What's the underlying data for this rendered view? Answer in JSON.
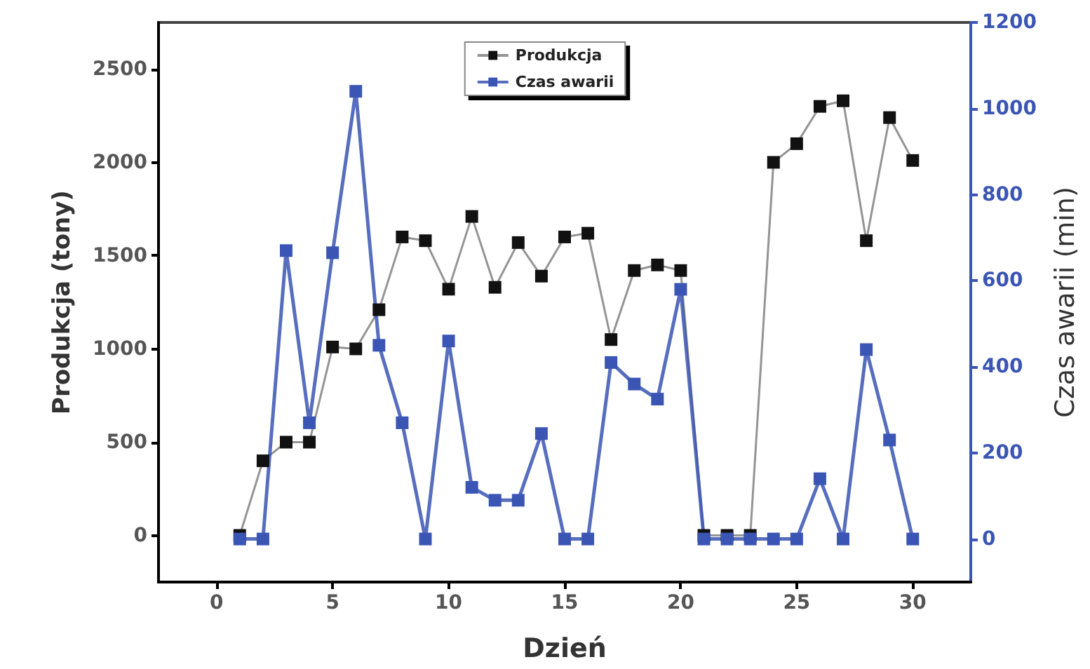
{
  "chart_data": {
    "type": "line",
    "xlabel": "Dzień",
    "ylabel": "Produkcja (tony)",
    "y2label": "Czas awarii (min)",
    "x": [
      1,
      2,
      3,
      4,
      5,
      6,
      7,
      8,
      9,
      10,
      11,
      12,
      13,
      14,
      15,
      16,
      17,
      18,
      19,
      20,
      21,
      22,
      23,
      24,
      25,
      26,
      27,
      28,
      29,
      30
    ],
    "series": [
      {
        "name": "Produkcja",
        "color": "#111111",
        "values": [
          0,
          400,
          500,
          500,
          1010,
          1000,
          1210,
          1600,
          1580,
          1320,
          1710,
          1330,
          1570,
          1390,
          1600,
          1620,
          1050,
          1420,
          1450,
          1420,
          0,
          0,
          0,
          2000,
          2100,
          2300,
          2330,
          1580,
          2240,
          2010
        ]
      },
      {
        "name": "Czas awarii",
        "color": "#3a55b4",
        "axis": "y2",
        "values": [
          0,
          0,
          670,
          270,
          665,
          1040,
          450,
          270,
          0,
          460,
          120,
          90,
          90,
          245,
          0,
          0,
          410,
          360,
          325,
          580,
          0,
          0,
          0,
          0,
          0,
          140,
          0,
          440,
          230,
          0
        ]
      }
    ],
    "xlim": [
      -2.5,
      32.5
    ],
    "xticks": [
      0,
      5,
      10,
      15,
      20,
      25,
      30
    ],
    "ylim": [
      -250,
      2750
    ],
    "yticks": [
      0,
      500,
      1000,
      1500,
      2000,
      2500
    ],
    "y2lim": [
      -100,
      1200
    ],
    "y2ticks": [
      0,
      200,
      400,
      600,
      800,
      1000,
      1200
    ],
    "marker": "square",
    "line_style": "solid",
    "grid": false,
    "legend": "top"
  }
}
